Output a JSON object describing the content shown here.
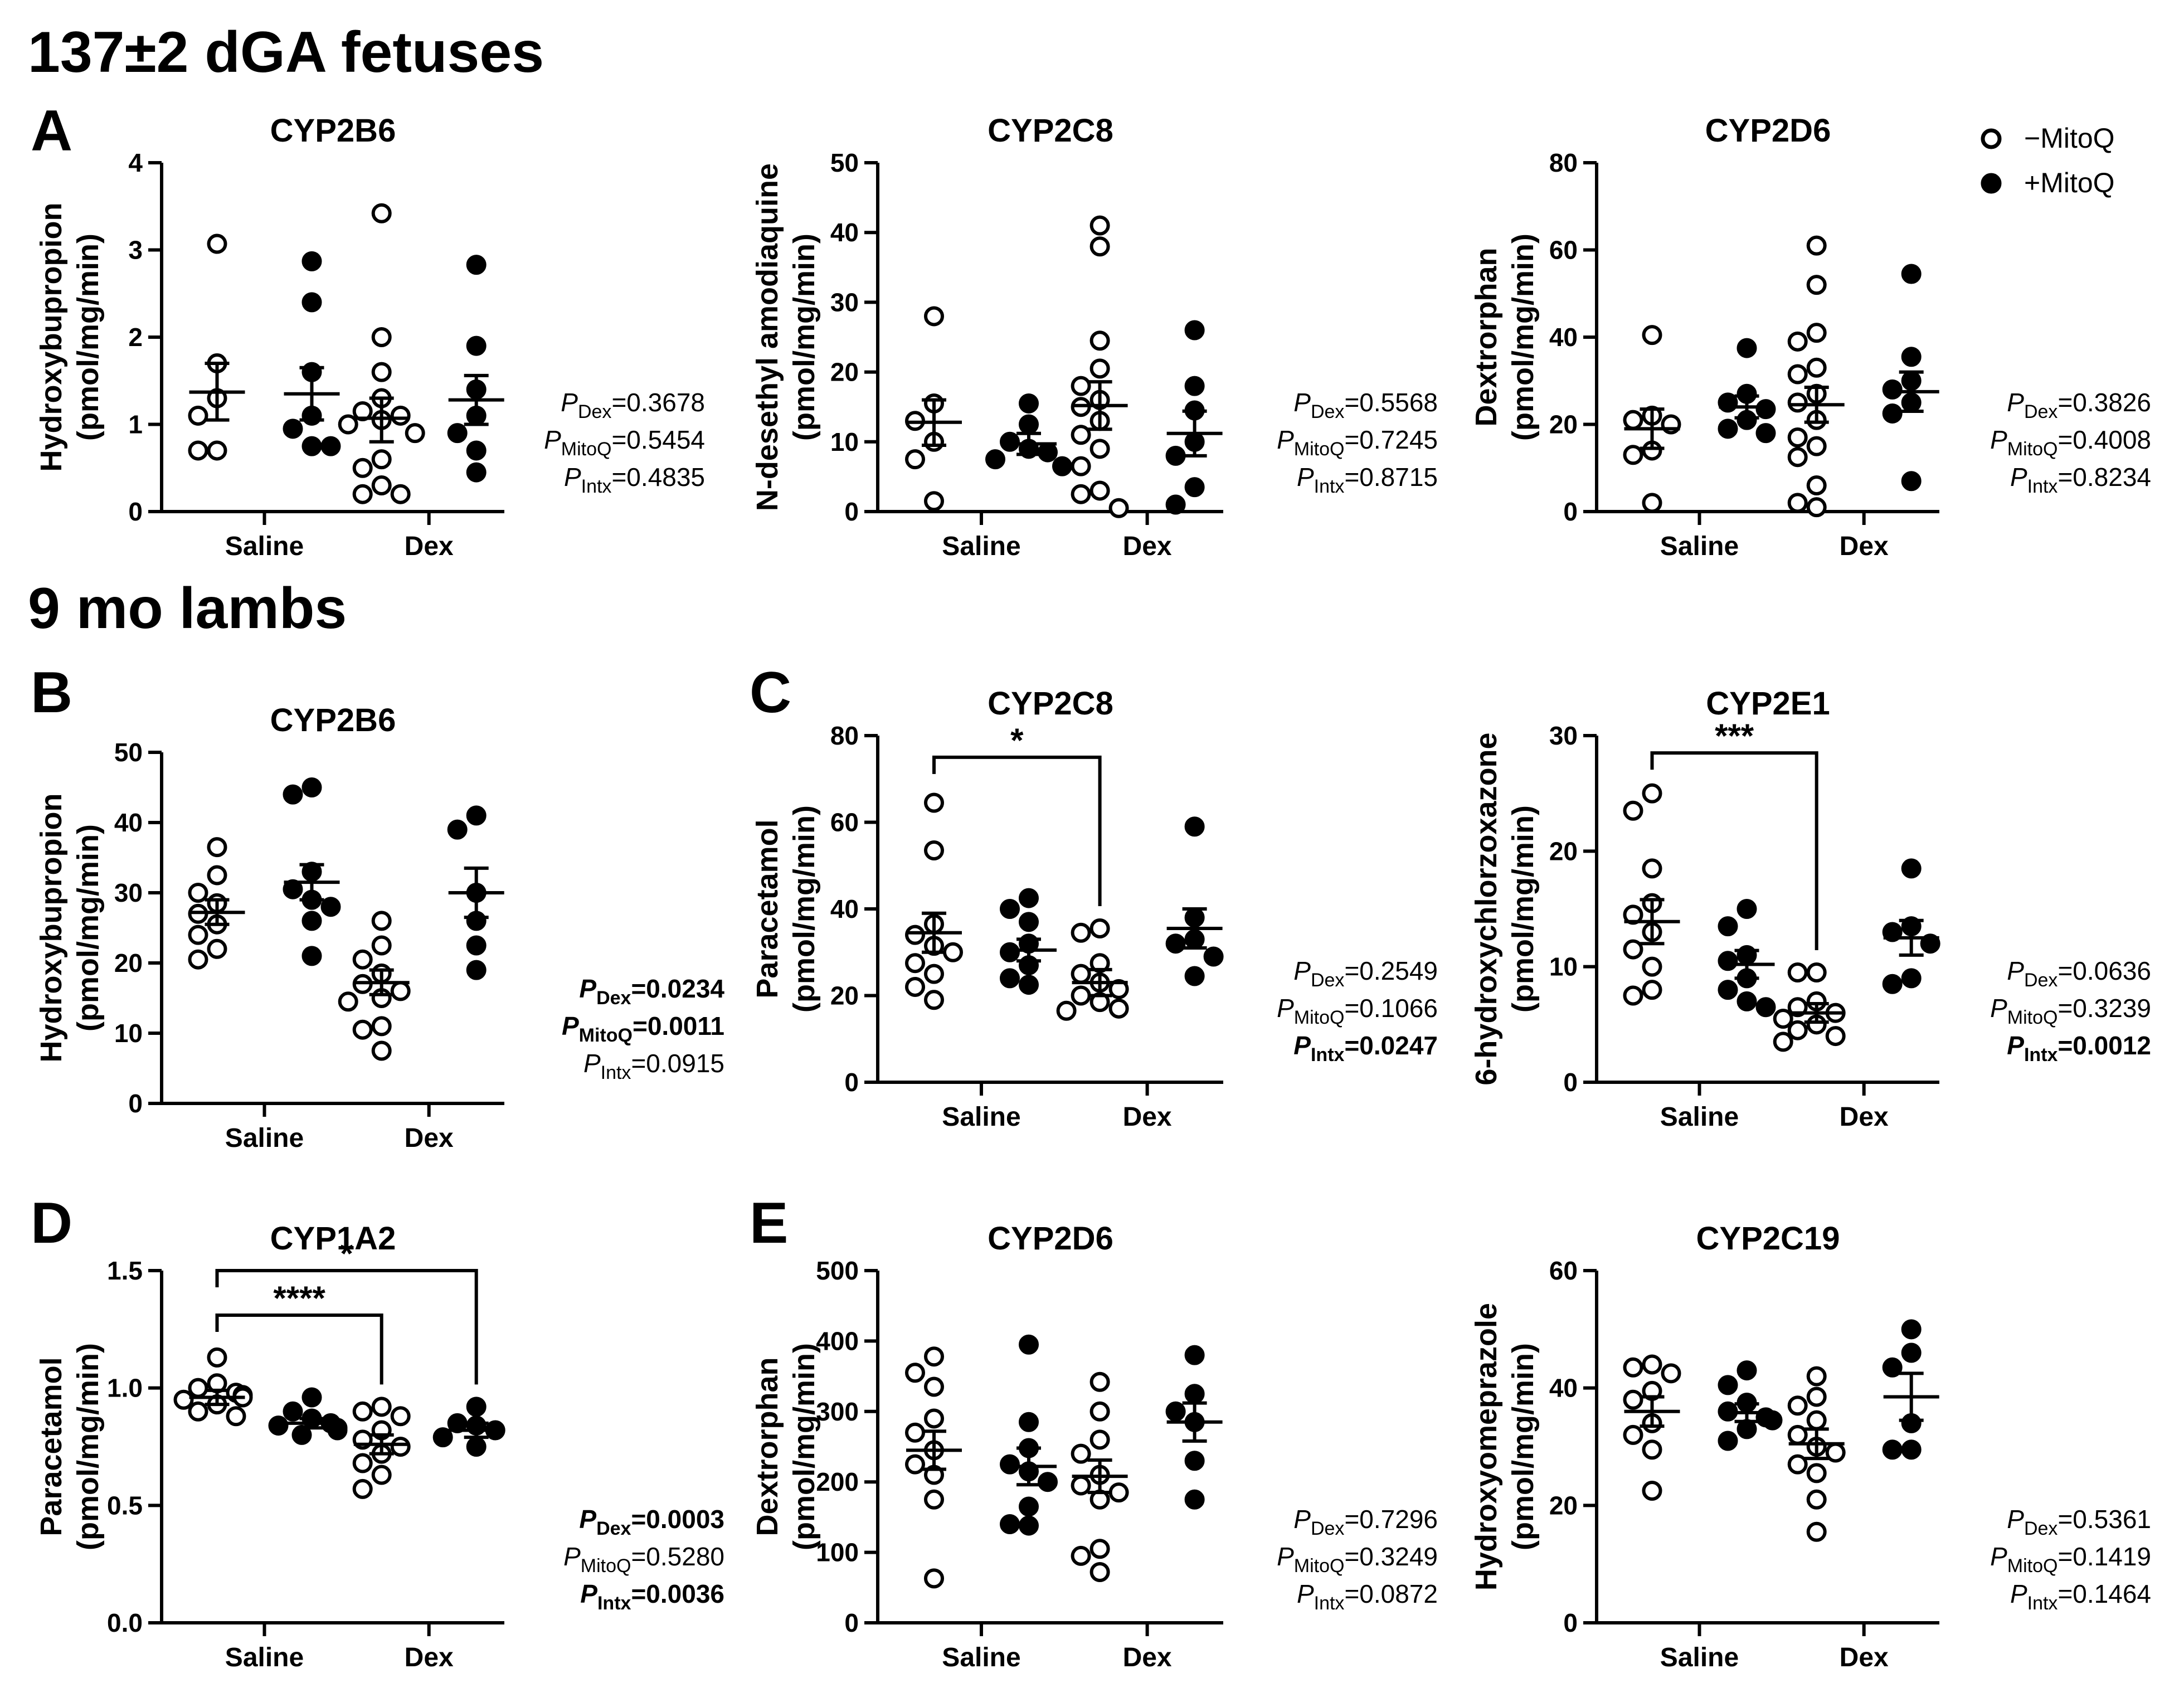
{
  "sections": [
    {
      "title": "137±2 dGA fetuses"
    },
    {
      "title": "9 mo lambs"
    }
  ],
  "legend": {
    "items": [
      {
        "label": "−MitoQ",
        "marker": "open-circle"
      },
      {
        "label": "+MitoQ",
        "marker": "filled-circle"
      }
    ]
  },
  "categories": [
    "Saline",
    "Dex"
  ],
  "chart_data": [
    {
      "type": "scatter",
      "panel_letter": "A",
      "title": "CYP2B6",
      "ylabel": [
        "Hydroxybupropion",
        "(pmol/mg/min)"
      ],
      "ylim": [
        0,
        4
      ],
      "yticks": [
        "0",
        "1",
        "2",
        "3",
        "4"
      ],
      "series": [
        {
          "name": "−MitoQ",
          "group": "Saline",
          "points": [
            3.07,
            1.7,
            1.3,
            1.1,
            0.7,
            0.7
          ],
          "mean": 1.37,
          "sem_range": [
            1.05,
            1.7
          ]
        },
        {
          "name": "+MitoQ",
          "group": "Saline",
          "points": [
            2.87,
            2.4,
            1.6,
            1.1,
            0.95,
            0.75,
            0.75
          ],
          "mean": 1.35,
          "sem_range": [
            1.05,
            1.65
          ]
        },
        {
          "name": "−MitoQ",
          "group": "Dex",
          "points": [
            3.42,
            2.0,
            1.6,
            1.3,
            1.15,
            1.1,
            1.05,
            1.0,
            0.9,
            0.6,
            0.5,
            0.3,
            0.2,
            0.2
          ],
          "mean": 1.07,
          "sem_range": [
            0.8,
            1.3
          ]
        },
        {
          "name": "+MitoQ",
          "group": "Dex",
          "points": [
            2.83,
            1.9,
            1.4,
            1.1,
            0.9,
            0.7,
            0.45
          ],
          "mean": 1.28,
          "sem_range": [
            1.0,
            1.56
          ]
        }
      ],
      "stats": [
        {
          "label": "Dex",
          "value": "=0.3678",
          "bold": false
        },
        {
          "label": "MitoQ",
          "value": "=0.5454",
          "bold": false
        },
        {
          "label": "Intx",
          "value": "=0.4835",
          "bold": false
        }
      ],
      "brackets": []
    },
    {
      "type": "scatter",
      "panel_letter": "",
      "title": "CYP2C8",
      "ylabel": [
        "N-desethyl amodiaquine",
        "(pmol/mg/min)"
      ],
      "ylim": [
        0,
        50
      ],
      "yticks": [
        "0",
        "10",
        "20",
        "30",
        "40",
        "50"
      ],
      "series": [
        {
          "name": "−MitoQ",
          "group": "Saline",
          "points": [
            28,
            15.5,
            13,
            10,
            7.5,
            1.5
          ],
          "mean": 12.8,
          "sem_range": [
            9.5,
            16
          ]
        },
        {
          "name": "+MitoQ",
          "group": "Saline",
          "points": [
            15.5,
            12.5,
            10,
            9,
            8.5,
            7.5,
            6.5
          ],
          "mean": 9.7,
          "sem_range": [
            8.2,
            11.2
          ]
        },
        {
          "name": "−MitoQ",
          "group": "Dex",
          "points": [
            41,
            38,
            24.5,
            20.5,
            18,
            16,
            15,
            13,
            11,
            9,
            6.5,
            3,
            2.5,
            0.5
          ],
          "mean": 15.2,
          "sem_range": [
            11.8,
            18.6
          ]
        },
        {
          "name": "+MitoQ",
          "group": "Dex",
          "points": [
            26,
            18,
            14.5,
            10,
            8,
            3.5,
            1
          ],
          "mean": 11.2,
          "sem_range": [
            8.0,
            14.4
          ]
        }
      ],
      "stats": [
        {
          "label": "Dex",
          "value": "=0.5568",
          "bold": false
        },
        {
          "label": "MitoQ",
          "value": "=0.7245",
          "bold": false
        },
        {
          "label": "Intx",
          "value": "=0.8715",
          "bold": false
        }
      ],
      "brackets": []
    },
    {
      "type": "scatter",
      "panel_letter": "",
      "title": "CYP2D6",
      "ylabel": [
        "Dextrorphan",
        "(pmol/mg/min)"
      ],
      "ylim": [
        0,
        80
      ],
      "yticks": [
        "0",
        "20",
        "40",
        "60",
        "80"
      ],
      "series": [
        {
          "name": "−MitoQ",
          "group": "Saline",
          "points": [
            40.5,
            22,
            21,
            20,
            14,
            13,
            2
          ],
          "mean": 19,
          "sem_range": [
            14.5,
            23.5
          ]
        },
        {
          "name": "+MitoQ",
          "group": "Saline",
          "points": [
            37.5,
            27,
            25,
            23.5,
            21,
            19,
            18
          ],
          "mean": 24,
          "sem_range": [
            21.5,
            26.5
          ]
        },
        {
          "name": "−MitoQ",
          "group": "Dex",
          "points": [
            61,
            52,
            41,
            39,
            33,
            31.5,
            27,
            25,
            21,
            17,
            15,
            12.5,
            6,
            2,
            1
          ],
          "mean": 24.5,
          "sem_range": [
            20.5,
            28.5
          ]
        },
        {
          "name": "+MitoQ",
          "group": "Dex",
          "points": [
            54.5,
            35.5,
            30,
            28,
            25,
            22.5,
            7
          ],
          "mean": 27.5,
          "sem_range": [
            23.0,
            32.0
          ]
        }
      ],
      "stats": [
        {
          "label": "Dex",
          "value": "=0.3826",
          "bold": false
        },
        {
          "label": "MitoQ",
          "value": "=0.4008",
          "bold": false
        },
        {
          "label": "Intx",
          "value": "=0.8234",
          "bold": false
        }
      ],
      "brackets": []
    },
    {
      "type": "scatter",
      "panel_letter": "B",
      "title": "CYP2B6",
      "ylabel": [
        "Hydroxybupropion",
        "(pmol/mg/min)"
      ],
      "ylim": [
        0,
        50
      ],
      "yticks": [
        "0",
        "10",
        "20",
        "30",
        "40",
        "50"
      ],
      "series": [
        {
          "name": "−MitoQ",
          "group": "Saline",
          "points": [
            36.5,
            32.5,
            30,
            28.5,
            27,
            25.5,
            24,
            22,
            20.5
          ],
          "mean": 27.2,
          "sem_range": [
            25.5,
            29
          ]
        },
        {
          "name": "+MitoQ",
          "group": "Saline",
          "points": [
            45,
            44,
            33,
            30.5,
            29,
            28,
            26,
            21
          ],
          "mean": 31.5,
          "sem_range": [
            29,
            34
          ]
        },
        {
          "name": "−MitoQ",
          "group": "Dex",
          "points": [
            26,
            22.5,
            20.5,
            18.5,
            17,
            16,
            15,
            14.5,
            11,
            10.5,
            7.5
          ],
          "mean": 17.2,
          "sem_range": [
            15.5,
            19
          ]
        },
        {
          "name": "+MitoQ",
          "group": "Dex",
          "points": [
            41,
            39,
            30,
            26,
            22.5,
            19
          ],
          "mean": 30,
          "sem_range": [
            26.5,
            33.5
          ]
        }
      ],
      "stats": [
        {
          "label": "Dex",
          "value": "=0.0234",
          "bold": true
        },
        {
          "label": "MitoQ",
          "value": "=0.0011",
          "bold": true
        },
        {
          "label": "Intx",
          "value": "=0.0915",
          "bold": false
        }
      ],
      "brackets": []
    },
    {
      "type": "scatter",
      "panel_letter": "C",
      "title": "CYP2C8",
      "ylabel": [
        "Paracetamol",
        "(pmol/mg/min)"
      ],
      "ylim": [
        0,
        80
      ],
      "yticks": [
        "0",
        "20",
        "40",
        "60",
        "80"
      ],
      "series": [
        {
          "name": "−MitoQ",
          "group": "Saline",
          "points": [
            64.5,
            53.5,
            36.5,
            34,
            31.5,
            30,
            27.5,
            25,
            22,
            19
          ],
          "mean": 34.5,
          "sem_range": [
            30,
            39
          ]
        },
        {
          "name": "+MitoQ",
          "group": "Saline",
          "points": [
            42.5,
            40,
            37,
            32,
            30,
            27,
            24,
            22.5
          ],
          "mean": 30.5,
          "sem_range": [
            28,
            33
          ]
        },
        {
          "name": "−MitoQ",
          "group": "Dex",
          "points": [
            35.5,
            34.5,
            27.5,
            25,
            23,
            21.5,
            20,
            18.5,
            17,
            16.5
          ],
          "mean": 23,
          "sem_range": [
            20,
            26
          ]
        },
        {
          "name": "+MitoQ",
          "group": "Dex",
          "points": [
            59,
            38,
            33,
            32,
            29,
            24.5
          ],
          "mean": 35.5,
          "sem_range": [
            31,
            40
          ]
        }
      ],
      "stats": [
        {
          "label": "Dex",
          "value": "=0.2549",
          "bold": false
        },
        {
          "label": "MitoQ",
          "value": "=0.1066",
          "bold": false
        },
        {
          "label": "Intx",
          "value": "=0.0247",
          "bold": true
        }
      ],
      "brackets": [
        {
          "label": "*",
          "from": 0,
          "to": 2,
          "y": 75
        }
      ]
    },
    {
      "type": "scatter",
      "panel_letter": "",
      "title": "CYP2E1",
      "ylabel": [
        "6-hydroxychlorzoxazone",
        "(pmol/mg/min)"
      ],
      "ylim": [
        0,
        30
      ],
      "yticks": [
        "0",
        "10",
        "20",
        "30"
      ],
      "series": [
        {
          "name": "−MitoQ",
          "group": "Saline",
          "points": [
            25,
            23.5,
            18.5,
            15.5,
            14.5,
            13,
            11.5,
            10,
            8,
            7.5
          ],
          "mean": 13.9,
          "sem_range": [
            12,
            15.8
          ]
        },
        {
          "name": "+MitoQ",
          "group": "Saline",
          "points": [
            15,
            13.5,
            11,
            10.5,
            9,
            8,
            7,
            6.5
          ],
          "mean": 10.2,
          "sem_range": [
            9,
            11.4
          ]
        },
        {
          "name": "−MitoQ",
          "group": "Dex",
          "points": [
            9.5,
            9.5,
            7,
            6.5,
            6,
            5.5,
            5,
            4.5,
            4,
            3.5
          ],
          "mean": 6.0,
          "sem_range": [
            5.2,
            6.8
          ]
        },
        {
          "name": "+MitoQ",
          "group": "Dex",
          "points": [
            18.5,
            13.5,
            13,
            12,
            9,
            8.5
          ],
          "mean": 12.5,
          "sem_range": [
            11,
            14
          ]
        }
      ],
      "stats": [
        {
          "label": "Dex",
          "value": "=0.0636",
          "bold": false
        },
        {
          "label": "MitoQ",
          "value": "=0.3239",
          "bold": false
        },
        {
          "label": "Intx",
          "value": "=0.0012",
          "bold": true
        }
      ],
      "brackets": [
        {
          "label": "***",
          "from": 0,
          "to": 2,
          "y": 28.5
        }
      ]
    },
    {
      "type": "scatter",
      "panel_letter": "D",
      "title": "CYP1A2",
      "ylabel": [
        "Paracetamol",
        "(pmol/mg/min)"
      ],
      "ylim": [
        0,
        1.5
      ],
      "yticks": [
        "0.0",
        "0.5",
        "1.0",
        "1.5"
      ],
      "series": [
        {
          "name": "−MitoQ",
          "group": "Saline",
          "points": [
            1.13,
            1.02,
            1.0,
            0.98,
            0.97,
            0.96,
            0.95,
            0.93,
            0.9,
            0.88
          ],
          "mean": 0.96,
          "sem_range": [
            0.93,
            0.99
          ]
        },
        {
          "name": "+MitoQ",
          "group": "Saline",
          "points": [
            0.96,
            0.9,
            0.87,
            0.85,
            0.84,
            0.83,
            0.82,
            0.8
          ],
          "mean": 0.85,
          "sem_range": [
            0.83,
            0.87
          ]
        },
        {
          "name": "−MitoQ",
          "group": "Dex",
          "points": [
            0.92,
            0.9,
            0.88,
            0.82,
            0.78,
            0.75,
            0.72,
            0.68,
            0.63,
            0.57
          ],
          "mean": 0.76,
          "sem_range": [
            0.72,
            0.8
          ]
        },
        {
          "name": "+MitoQ",
          "group": "Dex",
          "points": [
            0.92,
            0.85,
            0.84,
            0.82,
            0.79,
            0.75
          ],
          "mean": 0.82,
          "sem_range": [
            0.79,
            0.85
          ]
        }
      ],
      "stats": [
        {
          "label": "Dex",
          "value": "=0.0003",
          "bold": true
        },
        {
          "label": "MitoQ",
          "value": "=0.5280",
          "bold": false
        },
        {
          "label": "Intx",
          "value": "=0.0036",
          "bold": true
        }
      ],
      "brackets": [
        {
          "label": "****",
          "from": 0,
          "to": 2,
          "y": 1.31
        },
        {
          "label": "*",
          "from": 0,
          "to": 3,
          "y": 1.5
        }
      ]
    },
    {
      "type": "scatter",
      "panel_letter": "E",
      "title": "CYP2D6",
      "ylabel": [
        "Dextrorphan",
        "(pmol/mg/min)"
      ],
      "ylim": [
        0,
        500
      ],
      "yticks": [
        "0",
        "100",
        "200",
        "300",
        "400",
        "500"
      ],
      "series": [
        {
          "name": "−MitoQ",
          "group": "Saline",
          "points": [
            378,
            355,
            335,
            290,
            270,
            245,
            225,
            210,
            175,
            63
          ],
          "mean": 245,
          "sem_range": [
            218,
            272
          ]
        },
        {
          "name": "+MitoQ",
          "group": "Saline",
          "points": [
            395,
            285,
            248,
            225,
            215,
            200,
            165,
            140,
            138
          ],
          "mean": 222,
          "sem_range": [
            196,
            248
          ]
        },
        {
          "name": "−MitoQ",
          "group": "Dex",
          "points": [
            342,
            300,
            260,
            240,
            210,
            195,
            185,
            175,
            105,
            95,
            72
          ],
          "mean": 208,
          "sem_range": [
            185,
            231
          ]
        },
        {
          "name": "+MitoQ",
          "group": "Dex",
          "points": [
            380,
            325,
            300,
            285,
            230,
            175
          ],
          "mean": 285,
          "sem_range": [
            258,
            312
          ]
        }
      ],
      "stats": [
        {
          "label": "Dex",
          "value": "=0.7296",
          "bold": false
        },
        {
          "label": "MitoQ",
          "value": "=0.3249",
          "bold": false
        },
        {
          "label": "Intx",
          "value": "=0.0872",
          "bold": false
        }
      ],
      "brackets": []
    },
    {
      "type": "scatter",
      "panel_letter": "",
      "title": "CYP2C19",
      "ylabel": [
        "Hydroxyomeprazole",
        "(pmol/mg/min)"
      ],
      "ylim": [
        0,
        60
      ],
      "yticks": [
        "0",
        "20",
        "40",
        "60"
      ],
      "series": [
        {
          "name": "−MitoQ",
          "group": "Saline",
          "points": [
            44,
            43.5,
            42.5,
            39.5,
            38,
            34,
            32,
            29.5,
            22.5
          ],
          "mean": 36,
          "sem_range": [
            33.5,
            38.5
          ]
        },
        {
          "name": "+MitoQ",
          "group": "Saline",
          "points": [
            43,
            40.5,
            37.5,
            36,
            35,
            34.5,
            33,
            31
          ],
          "mean": 35.8,
          "sem_range": [
            34.3,
            37.3
          ]
        },
        {
          "name": "−MitoQ",
          "group": "Dex",
          "points": [
            42,
            38.5,
            37,
            34.5,
            32,
            30,
            29,
            27,
            25.5,
            21,
            15.5
          ],
          "mean": 30.5,
          "sem_range": [
            28,
            33
          ]
        },
        {
          "name": "+MitoQ",
          "group": "Dex",
          "points": [
            50,
            46,
            43.5,
            34,
            29.5,
            29.5
          ],
          "mean": 38.5,
          "sem_range": [
            34.5,
            42.5
          ]
        }
      ],
      "stats": [
        {
          "label": "Dex",
          "value": "=0.5361",
          "bold": false
        },
        {
          "label": "MitoQ",
          "value": "=0.1419",
          "bold": false
        },
        {
          "label": "Intx",
          "value": "=0.1464",
          "bold": false
        }
      ],
      "brackets": []
    }
  ]
}
